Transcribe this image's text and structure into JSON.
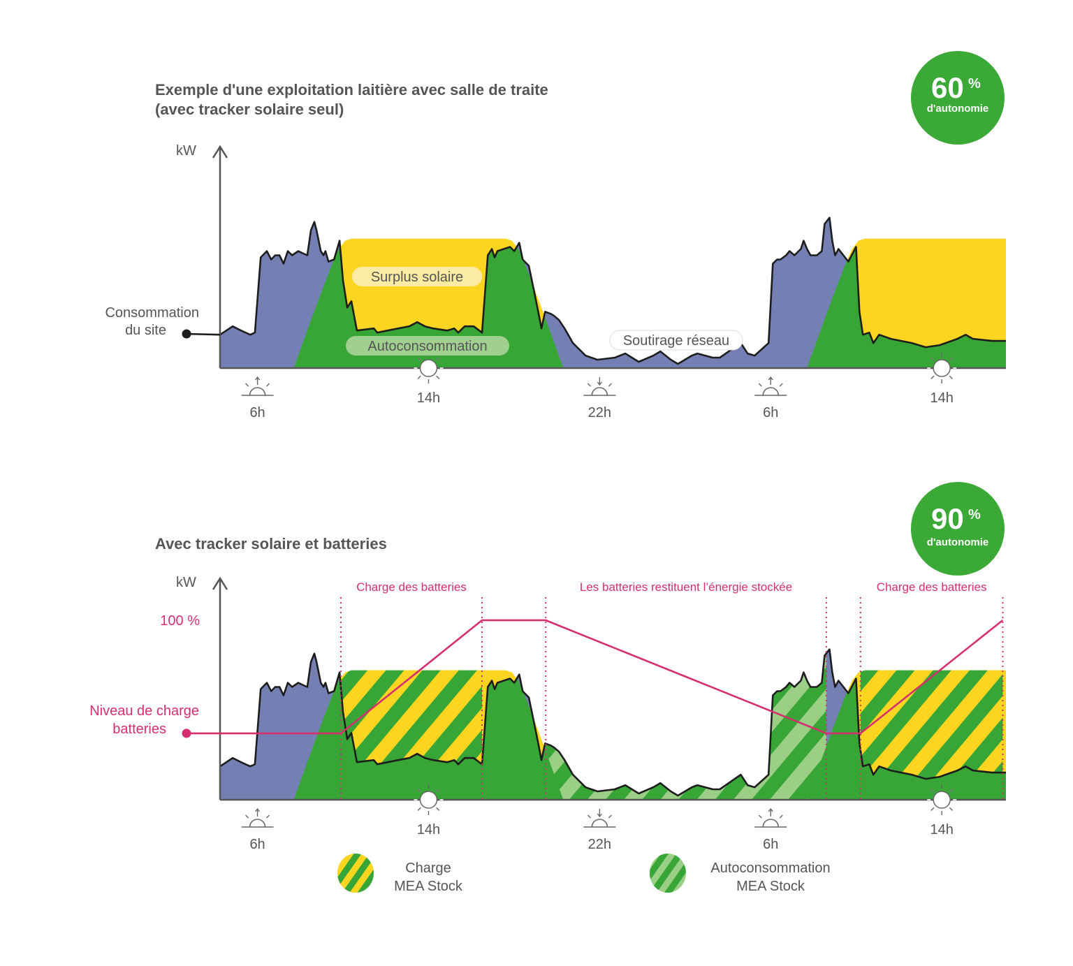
{
  "colors": {
    "grid_draw": "#7480b3",
    "self_consumption": "#37a636",
    "solar_surplus": "#fcd520",
    "battery_self_consumption": "#9ccf86",
    "battery_level": "#d62f6f",
    "badge": "#3aa935",
    "text": "#555555"
  },
  "legend": [
    {
      "line1": "Charge",
      "line2": "MEA Stock",
      "pattern": "yellow-green-stripes"
    },
    {
      "line1": "Autoconsommation",
      "line2": "MEA Stock",
      "pattern": "lightgreen-green-stripes"
    }
  ],
  "chart_data": [
    {
      "type": "area",
      "title_line1": "Exemple d'une exploitation laitière avec salle de traite",
      "title_line2": "(avec tracker solaire seul)",
      "badge": {
        "value": "60",
        "unit": "%",
        "caption": "d'autonomie"
      },
      "ylabel": "kW",
      "consumption_label_line1": "Consommation",
      "consumption_label_line2": "du site",
      "annotations": {
        "surplus": "Surplus solaire",
        "self": "Autoconsommation",
        "grid": "Soutirage réseau"
      },
      "xlim": [
        4.25,
        41
      ],
      "ylim": [
        0,
        106
      ],
      "ticks": [
        {
          "t": 6,
          "label": "6h",
          "icon": "sunrise"
        },
        {
          "t": 14,
          "label": "14h",
          "icon": "sun"
        },
        {
          "t": 22,
          "label": "22h",
          "icon": "sunset"
        },
        {
          "t": 30,
          "label": "6h",
          "icon": "sunrise"
        },
        {
          "t": 38,
          "label": "14h",
          "icon": "sun"
        }
      ],
      "consumption": [
        [
          4.25,
          16
        ],
        [
          4.84,
          20
        ],
        [
          5.23,
          18
        ],
        [
          5.66,
          16
        ],
        [
          5.88,
          17
        ],
        [
          6.15,
          53
        ],
        [
          6.44,
          56
        ],
        [
          6.64,
          52
        ],
        [
          6.83,
          54
        ],
        [
          7.03,
          54
        ],
        [
          7.22,
          50
        ],
        [
          7.42,
          56
        ],
        [
          7.62,
          54
        ],
        [
          7.91,
          56
        ],
        [
          8.11,
          55
        ],
        [
          8.33,
          54
        ],
        [
          8.5,
          66
        ],
        [
          8.66,
          70
        ],
        [
          8.76,
          66
        ],
        [
          8.96,
          56
        ],
        [
          9.09,
          54
        ],
        [
          9.18,
          56
        ],
        [
          9.32,
          51
        ],
        [
          9.58,
          52
        ],
        [
          9.84,
          61
        ],
        [
          10.0,
          42
        ],
        [
          10.2,
          29
        ],
        [
          10.39,
          32
        ],
        [
          10.65,
          18
        ],
        [
          11.44,
          19
        ],
        [
          11.6,
          17
        ],
        [
          12.09,
          18
        ],
        [
          12.58,
          19
        ],
        [
          13.1,
          20
        ],
        [
          13.47,
          22
        ],
        [
          13.83,
          20
        ],
        [
          14.22,
          19
        ],
        [
          14.87,
          18
        ],
        [
          15.2,
          19
        ],
        [
          15.39,
          17
        ],
        [
          15.69,
          20
        ],
        [
          16.11,
          20
        ],
        [
          16.5,
          17
        ],
        [
          16.77,
          54
        ],
        [
          16.96,
          57
        ],
        [
          17.09,
          53
        ],
        [
          17.22,
          56
        ],
        [
          17.81,
          58
        ],
        [
          18.01,
          56
        ],
        [
          18.24,
          60
        ],
        [
          18.4,
          52
        ],
        [
          18.69,
          49
        ],
        [
          18.89,
          39
        ],
        [
          19.15,
          26
        ],
        [
          19.28,
          19
        ],
        [
          19.45,
          27
        ],
        [
          19.71,
          26
        ],
        [
          19.87,
          25
        ],
        [
          20.1,
          23
        ],
        [
          20.36,
          19
        ],
        [
          20.75,
          12
        ],
        [
          21.34,
          6
        ],
        [
          21.9,
          4
        ],
        [
          22.71,
          5
        ],
        [
          23.2,
          7
        ],
        [
          23.83,
          3
        ],
        [
          24.51,
          6
        ],
        [
          24.84,
          8
        ],
        [
          25.33,
          4
        ],
        [
          25.66,
          2
        ],
        [
          26.31,
          6
        ],
        [
          26.57,
          7
        ],
        [
          27.29,
          5
        ],
        [
          27.62,
          5
        ],
        [
          28.6,
          12
        ],
        [
          28.92,
          7
        ],
        [
          29.25,
          6
        ],
        [
          29.9,
          12
        ],
        [
          30.1,
          50
        ],
        [
          30.3,
          52
        ],
        [
          30.46,
          52
        ],
        [
          30.72,
          54
        ],
        [
          30.88,
          56
        ],
        [
          31.11,
          54
        ],
        [
          31.41,
          57
        ],
        [
          31.54,
          61
        ],
        [
          31.7,
          57
        ],
        [
          31.86,
          54
        ],
        [
          32.16,
          54
        ],
        [
          32.39,
          56
        ],
        [
          32.52,
          69
        ],
        [
          32.75,
          72
        ],
        [
          32.88,
          61
        ],
        [
          33.01,
          54
        ],
        [
          33.17,
          57
        ],
        [
          33.63,
          51
        ],
        [
          33.99,
          58
        ],
        [
          34.15,
          27
        ],
        [
          34.31,
          16
        ],
        [
          34.61,
          17
        ],
        [
          34.8,
          12
        ],
        [
          35.07,
          16
        ],
        [
          35.62,
          14
        ],
        [
          36.11,
          13
        ],
        [
          36.6,
          12
        ],
        [
          37.25,
          10
        ],
        [
          37.9,
          11
        ],
        [
          38.73,
          14
        ],
        [
          39.12,
          16
        ],
        [
          39.45,
          14
        ],
        [
          40.36,
          13
        ],
        [
          41.0,
          13
        ]
      ],
      "solar": [
        [
          7.7,
          0
        ],
        [
          8,
          8.6
        ],
        [
          8.5,
          22.8
        ],
        [
          9,
          36.6
        ],
        [
          9.5,
          49.9
        ],
        [
          9.8,
          57
        ],
        [
          10.1,
          61
        ],
        [
          10.4,
          62
        ],
        [
          17.6,
          62
        ],
        [
          17.9,
          61
        ],
        [
          18.2,
          57
        ],
        [
          18.5,
          49.9
        ],
        [
          19,
          36.6
        ],
        [
          19.5,
          22.8
        ],
        [
          20,
          8.6
        ],
        [
          20.3,
          0
        ],
        [
          31.7,
          0
        ],
        [
          32,
          8.6
        ],
        [
          32.5,
          22.8
        ],
        [
          33,
          36.6
        ],
        [
          33.5,
          49.9
        ],
        [
          33.8,
          57
        ],
        [
          34.1,
          61
        ],
        [
          34.4,
          62
        ],
        [
          41,
          62
        ]
      ]
    },
    {
      "type": "area",
      "title_line1": "Avec tracker solaire et batteries",
      "badge": {
        "value": "90",
        "unit": "%",
        "caption": "d'autonomie"
      },
      "ylabel": "kW",
      "battery_axis_label": "100 %",
      "battery_label_line1": "Niveau de charge",
      "battery_label_line2": "batteries",
      "periods": [
        {
          "label": "Charge des batteries",
          "start": 9.9,
          "end": 16.5,
          "kind": "charge"
        },
        {
          "label": "Les batteries restituent l’énergie stockée",
          "start": 19.48,
          "end": 32.6,
          "kind": "discharge"
        },
        {
          "label": "Charge des batteries",
          "start": 34.2,
          "end": 40.85,
          "kind": "charge"
        }
      ],
      "xlim": [
        4.25,
        41
      ],
      "ylim": [
        0,
        106
      ],
      "ticks": [
        {
          "t": 6,
          "label": "6h",
          "icon": "sunrise"
        },
        {
          "t": 14,
          "label": "14h",
          "icon": "sun"
        },
        {
          "t": 22,
          "label": "22h",
          "icon": "sunset"
        },
        {
          "t": 30,
          "label": "6h",
          "icon": "sunrise"
        },
        {
          "t": 38,
          "label": "14h",
          "icon": "sun"
        }
      ],
      "battery_level_pct": [
        [
          4.25,
          37
        ],
        [
          9.9,
          37
        ],
        [
          16.5,
          100
        ],
        [
          19.48,
          100
        ],
        [
          32.6,
          37
        ],
        [
          34.2,
          37
        ],
        [
          40.85,
          100
        ]
      ]
    }
  ]
}
